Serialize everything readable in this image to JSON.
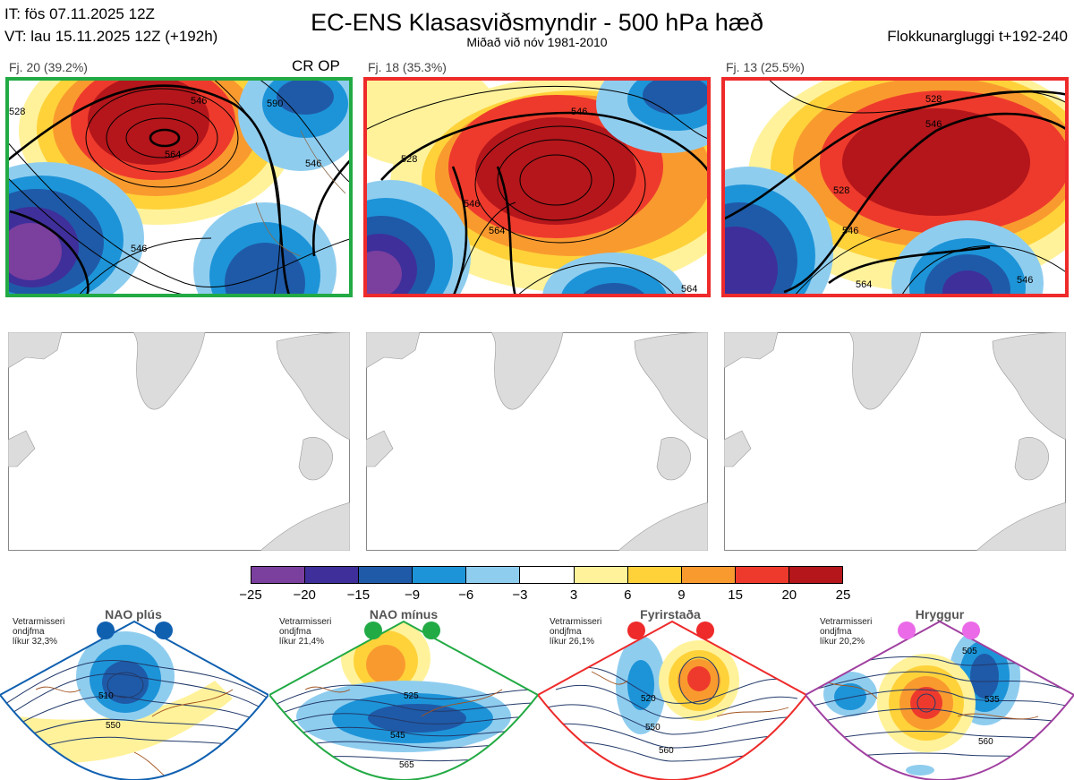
{
  "header": {
    "it_line": "IT: fös 07.11.2025 12Z",
    "vt_line": "VT: lau 15.11.2025 12Z  (+192h)",
    "title": "EC-ENS Klasasviðsmyndir - 500 hPa hæð",
    "subtitle": "Miðað við nóv 1981-2010",
    "window": "Flokkunargluggi t+192-240"
  },
  "clusters": [
    {
      "label": "Fj. 20 (39.2%)",
      "tag": "CR OP",
      "border_color": "#22aa44",
      "contours": [
        "528",
        "546",
        "564",
        "546",
        "546",
        "590"
      ]
    },
    {
      "label": "Fj. 18 (35.3%)",
      "tag": "",
      "border_color": "#ee2a2a",
      "contours": [
        "528",
        "546",
        "564",
        "546",
        "564"
      ]
    },
    {
      "label": "Fj. 13 (25.5%)",
      "tag": "",
      "border_color": "#ee2a2a",
      "contours": [
        "528",
        "546",
        "528",
        "546",
        "564",
        "546"
      ]
    }
  ],
  "colorbar": {
    "ticks": [
      "−25",
      "−20",
      "−15",
      "−9",
      "−6",
      "−3",
      "3",
      "6",
      "9",
      "15",
      "20",
      "25"
    ],
    "colors": [
      "#7b3f9e",
      "#3f2f9a",
      "#1f5aa8",
      "#1d94d8",
      "#8fcdef",
      "#ffffff",
      "#fff29a",
      "#ffd23a",
      "#f99a2f",
      "#ee3a2c",
      "#b4161b"
    ]
  },
  "regimes": [
    {
      "title": "NAO plús",
      "note": "Vetrarmisseri\nondjfma\nlíkur 32,3%",
      "color": "#1060b0",
      "contours": [
        "510",
        "550"
      ]
    },
    {
      "title": "NAO mínus",
      "note": "Vetrarmisseri\nondjfma\nlíkur 21,4%",
      "color": "#22aa44",
      "contours": [
        "525",
        "545",
        "565"
      ]
    },
    {
      "title": "Fyrirstaða",
      "note": "Vetrarmisseri\nondjfma\nlíkur 26,1%",
      "color": "#ee2a2a",
      "contours": [
        "520",
        "550",
        "560"
      ]
    },
    {
      "title": "Hryggur",
      "note": "Vetrarmisseri\nondjfma\nlíkur 20,2%",
      "color": "#a040a0",
      "contours": [
        "505",
        "535",
        "560"
      ]
    }
  ]
}
